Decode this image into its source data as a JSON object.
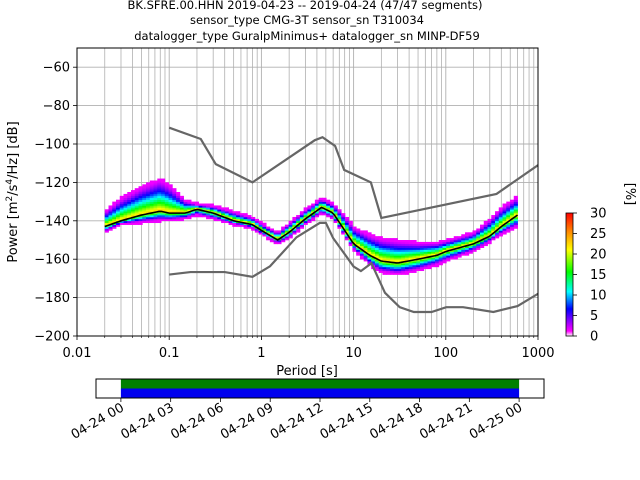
{
  "chart_data": {
    "type": "heatmap",
    "title_lines": [
      "BK.SFRE.00.HHN   2019-04-23 -- 2019-04-24  (47/47 segments)",
      "sensor_type CMG-3T sensor_sn T310034",
      "datalogger_type GuralpMinimus+ datalogger_sn MINP-DF59"
    ],
    "xlabel": "Period [s]",
    "ylabel_parts": [
      "Power [m",
      "2",
      "/s",
      "4",
      "/Hz] [dB]"
    ],
    "x_scale": "log",
    "xlim": [
      0.01,
      1000
    ],
    "ylim": [
      -200,
      -50
    ],
    "x_ticks": [
      0.01,
      0.1,
      1,
      10,
      100,
      1000
    ],
    "x_tick_labels": [
      "0.01",
      "0.1",
      "1",
      "10",
      "100",
      "1000"
    ],
    "y_ticks": [
      -200,
      -180,
      -160,
      -140,
      -120,
      -100,
      -80,
      -60
    ],
    "y_tick_labels": [
      "−200",
      "−180",
      "−160",
      "−140",
      "−120",
      "−100",
      "−80",
      "−60"
    ],
    "grid": true,
    "colorbar": {
      "label": "[%]",
      "range": [
        0,
        30
      ],
      "ticks": [
        0,
        5,
        10,
        15,
        20,
        25,
        30
      ],
      "tick_labels": [
        "0",
        "5",
        "10",
        "15",
        "20",
        "25",
        "30"
      ],
      "colormap": [
        "#ffffff",
        "#ff00ff",
        "#0000ff",
        "#00ffff",
        "#00ff00",
        "#ffff00",
        "#ff8800",
        "#ff0000"
      ]
    },
    "noise_model_high": {
      "period": [
        0.1,
        0.22,
        0.32,
        0.8,
        3.8,
        4.6,
        6.3,
        7.9,
        15.4,
        20,
        354.8,
        1000
      ],
      "power": [
        -91.5,
        -97.4,
        -110.5,
        -120,
        -98,
        -96.5,
        -101,
        -113.5,
        -120,
        -138.5,
        -126,
        -111
      ]
    },
    "noise_model_low": {
      "period": [
        0.1,
        0.17,
        0.4,
        0.8,
        1.24,
        2.4,
        4.3,
        5,
        6,
        10,
        12,
        15.6,
        21.9,
        31.6,
        45,
        70,
        101,
        154,
        328,
        600,
        1000
      ],
      "power": [
        -168,
        -166.7,
        -166.7,
        -169.2,
        -163.7,
        -148.6,
        -141.1,
        -141.1,
        -149,
        -163.8,
        -166.2,
        -162.1,
        -177.5,
        -185,
        -187.5,
        -187.5,
        -185,
        -185,
        -187.5,
        -184.4,
        -178
      ]
    },
    "mode_curve": {
      "period": [
        0.02,
        0.03,
        0.05,
        0.08,
        0.1,
        0.15,
        0.2,
        0.3,
        0.5,
        0.8,
        1.0,
        1.5,
        2.0,
        3.0,
        4.5,
        6.0,
        8.0,
        10,
        15,
        20,
        30,
        50,
        80,
        100,
        200,
        300,
        400,
        600
      ],
      "power": [
        -143,
        -140,
        -137,
        -135,
        -136,
        -136,
        -134,
        -136,
        -140,
        -142,
        -145,
        -150,
        -146,
        -139,
        -133,
        -136,
        -145,
        -152,
        -158,
        -161,
        -162,
        -160,
        -158,
        -156,
        -152,
        -148,
        -143,
        -137
      ]
    },
    "spread_upper": {
      "period": [
        0.02,
        0.03,
        0.05,
        0.08,
        0.1,
        0.15,
        0.2,
        0.3,
        0.5,
        0.8,
        1.0,
        1.5,
        2.0,
        3.0,
        4.5,
        6.0,
        8.0,
        10,
        15,
        20,
        30,
        50,
        80,
        100,
        200,
        300,
        400,
        600
      ],
      "power": [
        -136,
        -129,
        -123,
        -119,
        -122,
        -130,
        -132,
        -133,
        -136,
        -139,
        -142,
        -147,
        -142,
        -135,
        -129,
        -132,
        -138,
        -144,
        -148,
        -150,
        -151,
        -152,
        -152,
        -151,
        -147,
        -140,
        -134,
        -128
      ]
    },
    "spread_lower": {
      "period": [
        0.02,
        0.03,
        0.05,
        0.08,
        0.1,
        0.15,
        0.2,
        0.3,
        0.5,
        0.8,
        1.0,
        1.5,
        2.0,
        3.0,
        4.5,
        6.0,
        8.0,
        10,
        15,
        20,
        30,
        50,
        80,
        100,
        200,
        300,
        400,
        600
      ],
      "power": [
        -146,
        -142,
        -141,
        -140,
        -140,
        -139,
        -137,
        -139,
        -142,
        -144,
        -147,
        -152,
        -149,
        -142,
        -136,
        -139,
        -148,
        -155,
        -163,
        -167,
        -168,
        -166,
        -163,
        -161,
        -156,
        -151,
        -147,
        -143
      ]
    },
    "time_axis": {
      "tick_labels": [
        "04-24 00",
        "04-24 03",
        "04-24 06",
        "04-24 09",
        "04-24 12",
        "04-24 15",
        "04-24 18",
        "04-24 21",
        "04-25 00"
      ],
      "start_hour": -1.5,
      "end_hour": 25.5,
      "coverage": [
        {
          "from_hour": 0,
          "to_hour": 24
        }
      ],
      "coverage_colors": [
        "#008000",
        "#0000ee"
      ]
    }
  }
}
